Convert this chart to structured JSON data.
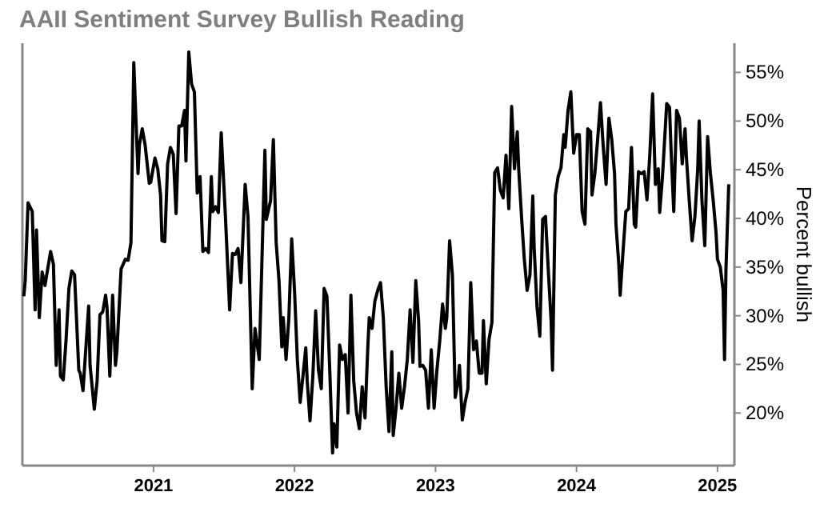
{
  "chart_data": {
    "type": "line",
    "title": "AAII Sentiment Survey Bullish Reading",
    "ylabel": "Percent bullish",
    "xlim": [
      2020.07,
      2025.12
    ],
    "xticks": [
      2021,
      2022,
      2023,
      2024,
      2025
    ],
    "ylim": [
      14.6,
      58
    ],
    "yticks": [
      {
        "value": 20,
        "label": "20%"
      },
      {
        "value": 25,
        "label": "25%"
      },
      {
        "value": 30,
        "label": "30%"
      },
      {
        "value": 35,
        "label": "35%"
      },
      {
        "value": 40,
        "label": "40%"
      },
      {
        "value": 45,
        "label": "45%"
      },
      {
        "value": 50,
        "label": "50%"
      },
      {
        "value": 55,
        "label": "55%"
      }
    ],
    "grid": false,
    "marker": "none",
    "line_style": "solid",
    "series": [
      {
        "color": "#000000",
        "x": [
          2020.08,
          2020.09,
          2020.11,
          2020.14,
          2020.16,
          2020.17,
          2020.19,
          2020.21,
          2020.23,
          2020.27,
          2020.29,
          2020.31,
          2020.33,
          2020.34,
          2020.36,
          2020.38,
          2020.4,
          2020.42,
          2020.44,
          2020.47,
          2020.48,
          2020.5,
          2020.54,
          2020.55,
          2020.58,
          2020.6,
          2020.62,
          2020.64,
          2020.66,
          2020.67,
          2020.69,
          2020.71,
          2020.73,
          2020.74,
          2020.77,
          2020.8,
          2020.82,
          2020.84,
          2020.86,
          2020.89,
          2020.9,
          2020.92,
          2020.94,
          2020.97,
          2020.98,
          2021.01,
          2021.03,
          2021.05,
          2021.06,
          2021.08,
          2021.1,
          2021.12,
          2021.14,
          2021.16,
          2021.18,
          2021.2,
          2021.22,
          2021.23,
          2021.25,
          2021.27,
          2021.29,
          2021.31,
          2021.33,
          2021.35,
          2021.37,
          2021.39,
          2021.41,
          2021.42,
          2021.44,
          2021.46,
          2021.48,
          2021.51,
          2021.54,
          2021.56,
          2021.58,
          2021.6,
          2021.62,
          2021.65,
          2021.67,
          2021.7,
          2021.72,
          2021.73,
          2021.75,
          2021.79,
          2021.8,
          2021.83,
          2021.85,
          2021.87,
          2021.89,
          2021.91,
          2021.92,
          2021.94,
          2021.96,
          2021.98,
          2022.0,
          2022.02,
          2022.04,
          2022.06,
          2022.08,
          2022.09,
          2022.11,
          2022.13,
          2022.15,
          2022.17,
          2022.19,
          2022.21,
          2022.23,
          2022.25,
          2022.27,
          2022.28,
          2022.3,
          2022.32,
          2022.34,
          2022.36,
          2022.38,
          2022.4,
          2022.42,
          2022.44,
          2022.46,
          2022.48,
          2022.5,
          2022.52,
          2022.53,
          2022.55,
          2022.57,
          2022.59,
          2022.61,
          2022.63,
          2022.65,
          2022.67,
          2022.69,
          2022.7,
          2022.72,
          2022.74,
          2022.76,
          2022.78,
          2022.8,
          2022.82,
          2022.84,
          2022.86,
          2022.88,
          2022.89,
          2022.91,
          2022.93,
          2022.95,
          2022.97,
          2022.99,
          2023.01,
          2023.03,
          2023.05,
          2023.07,
          2023.08,
          2023.1,
          2023.12,
          2023.14,
          2023.16,
          2023.17,
          2023.19,
          2023.21,
          2023.23,
          2023.25,
          2023.27,
          2023.29,
          2023.31,
          2023.33,
          2023.34,
          2023.36,
          2023.38,
          2023.4,
          2023.42,
          2023.44,
          2023.46,
          2023.48,
          2023.5,
          2023.52,
          2023.54,
          2023.56,
          2023.58,
          2023.59,
          2023.61,
          2023.63,
          2023.65,
          2023.67,
          2023.69,
          2023.7,
          2023.72,
          2023.74,
          2023.76,
          2023.78,
          2023.8,
          2023.82,
          2023.83,
          2023.85,
          2023.87,
          2023.89,
          2023.91,
          2023.92,
          2023.94,
          2023.96,
          2023.98,
          2024.0,
          2024.02,
          2024.04,
          2024.06,
          2024.08,
          2024.1,
          2024.11,
          2024.13,
          2024.15,
          2024.17,
          2024.19,
          2024.21,
          2024.23,
          2024.25,
          2024.27,
          2024.28,
          2024.3,
          2024.31,
          2024.33,
          2024.35,
          2024.37,
          2024.39,
          2024.41,
          2024.42,
          2024.44,
          2024.46,
          2024.48,
          2024.5,
          2024.52,
          2024.54,
          2024.56,
          2024.58,
          2024.59,
          2024.61,
          2024.64,
          2024.66,
          2024.67,
          2024.69,
          2024.71,
          2024.73,
          2024.75,
          2024.77,
          2024.78,
          2024.8,
          2024.82,
          2024.84,
          2024.86,
          2024.87,
          2024.89,
          2024.91,
          2024.93,
          2024.95,
          2024.97,
          2024.99,
          2025.0,
          2025.02,
          2025.04,
          2025.05,
          2025.06,
          2025.08
        ],
        "values": [
          32.0,
          33.6,
          41.6,
          40.7,
          30.6,
          38.8,
          29.8,
          34.5,
          33.1,
          36.6,
          35.3,
          24.9,
          30.6,
          23.8,
          23.4,
          27.6,
          32.8,
          34.6,
          34.2,
          24.4,
          24.1,
          22.3,
          31.0,
          24.9,
          20.4,
          23.3,
          30.1,
          30.4,
          32.1,
          30.9,
          23.8,
          32.1,
          24.9,
          26.3,
          34.8,
          35.8,
          35.7,
          37.5,
          56.0,
          44.6,
          47.6,
          49.2,
          47.6,
          43.6,
          43.7,
          46.2,
          45.1,
          42.4,
          37.7,
          37.6,
          45.6,
          47.3,
          46.6,
          40.5,
          49.5,
          49.5,
          51.1,
          45.9,
          57.1,
          53.8,
          53.0,
          42.6,
          44.3,
          36.6,
          36.9,
          36.5,
          44.3,
          40.7,
          41.2,
          40.6,
          48.8,
          40.2,
          30.6,
          36.4,
          36.3,
          36.9,
          33.4,
          43.5,
          40.2,
          22.5,
          28.7,
          27.6,
          25.5,
          47.0,
          39.9,
          41.8,
          48.1,
          37.5,
          33.6,
          26.8,
          29.8,
          25.5,
          29.8,
          37.9,
          32.6,
          25.5,
          21.1,
          23.8,
          26.7,
          23.3,
          19.2,
          23.8,
          30.5,
          24.4,
          22.5,
          32.8,
          32.0,
          24.4,
          15.9,
          18.9,
          16.5,
          27.0,
          25.5,
          26.0,
          20.0,
          32.1,
          23.3,
          20.0,
          18.4,
          22.7,
          19.5,
          26.8,
          29.8,
          28.7,
          31.5,
          32.6,
          33.4,
          29.8,
          22.7,
          18.1,
          26.3,
          17.7,
          20.5,
          24.1,
          20.5,
          22.7,
          25.5,
          30.6,
          25.2,
          33.6,
          29.5,
          24.8,
          24.9,
          24.4,
          20.5,
          26.5,
          20.5,
          24.4,
          27.4,
          31.2,
          28.7,
          29.8,
          37.7,
          34.2,
          21.6,
          23.3,
          24.9,
          19.3,
          21.1,
          22.5,
          33.4,
          26.5,
          27.4,
          24.1,
          24.1,
          29.5,
          23.0,
          27.6,
          29.3,
          44.7,
          45.2,
          42.9,
          42.1,
          46.5,
          41.0,
          51.5,
          45.1,
          48.9,
          45.1,
          40.2,
          35.8,
          32.6,
          34.2,
          42.3,
          36.9,
          30.9,
          27.9,
          39.9,
          40.2,
          34.7,
          29.5,
          24.4,
          42.4,
          44.3,
          45.2,
          48.6,
          47.3,
          51.1,
          53.0,
          46.7,
          48.6,
          48.6,
          40.7,
          39.4,
          49.2,
          48.9,
          42.4,
          44.6,
          48.1,
          51.9,
          47.3,
          43.5,
          50.3,
          48.1,
          44.6,
          39.4,
          35.3,
          32.1,
          36.6,
          40.7,
          41.0,
          47.3,
          39.4,
          39.1,
          44.8,
          44.6,
          44.8,
          41.9,
          46.5,
          52.8,
          43.5,
          45.1,
          40.6,
          44.3,
          51.8,
          51.4,
          47.3,
          40.7,
          51.1,
          50.3,
          45.6,
          49.2,
          46.2,
          41.8,
          37.7,
          40.2,
          45.1,
          50.0,
          41.8,
          37.2,
          48.4,
          44.6,
          41.8,
          38.5,
          35.8,
          35.0,
          32.6,
          25.5,
          34.7,
          43.5
        ]
      }
    ]
  }
}
